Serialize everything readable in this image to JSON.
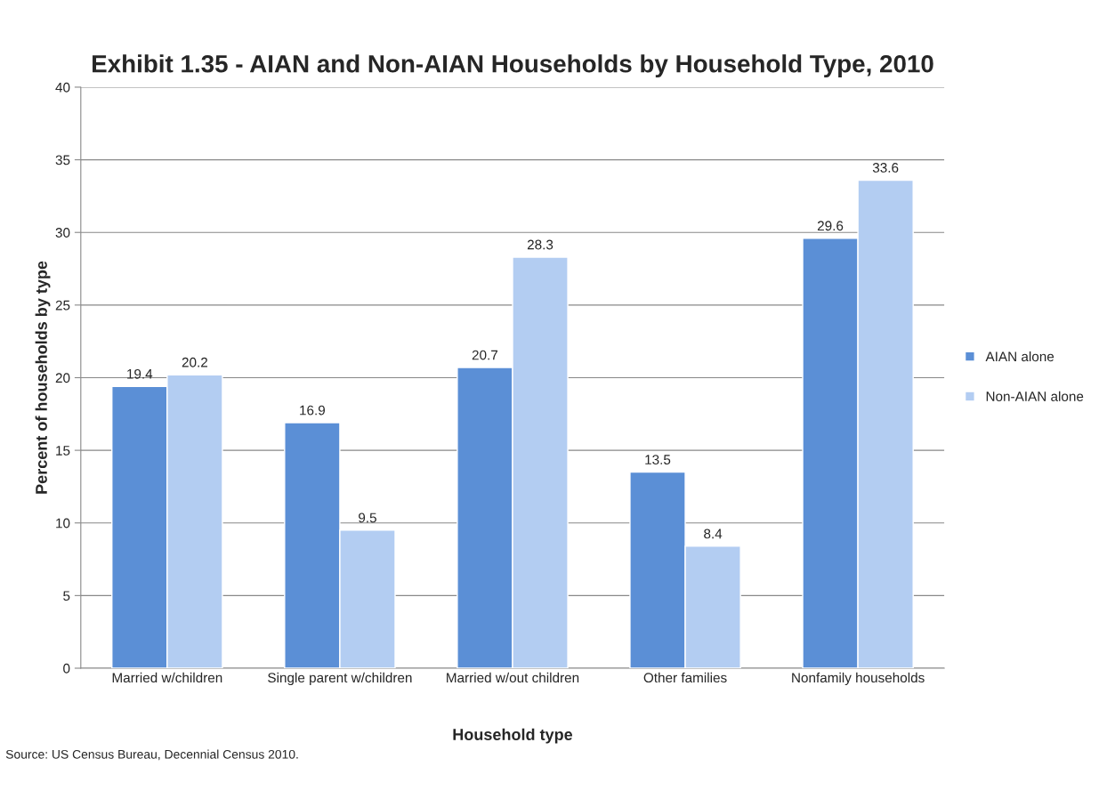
{
  "chart_data": {
    "type": "bar",
    "title": "Exhibit 1.35 - AIAN and Non-AIAN Households by Household Type, 2010",
    "xlabel": "Household type",
    "ylabel": "Percent of households by type",
    "categories": [
      "Married w/children",
      "Single parent w/children",
      "Married w/out children",
      "Other families",
      "Nonfamily households"
    ],
    "series": [
      {
        "name": "AIAN alone",
        "color": "#5b8fd6",
        "values": [
          19.4,
          16.9,
          20.7,
          13.5,
          29.6
        ]
      },
      {
        "name": "Non-AIAN alone",
        "color": "#b3cdf2",
        "values": [
          20.2,
          9.5,
          28.3,
          8.4,
          33.6
        ]
      }
    ],
    "ylim": [
      0,
      40
    ],
    "yticks": [
      0,
      5,
      10,
      15,
      20,
      25,
      30,
      35,
      40
    ],
    "grid": "y",
    "legend": "right",
    "data_labels": true,
    "annotations": [
      "Source: US Census Bureau, Decennial Census 2010."
    ]
  }
}
